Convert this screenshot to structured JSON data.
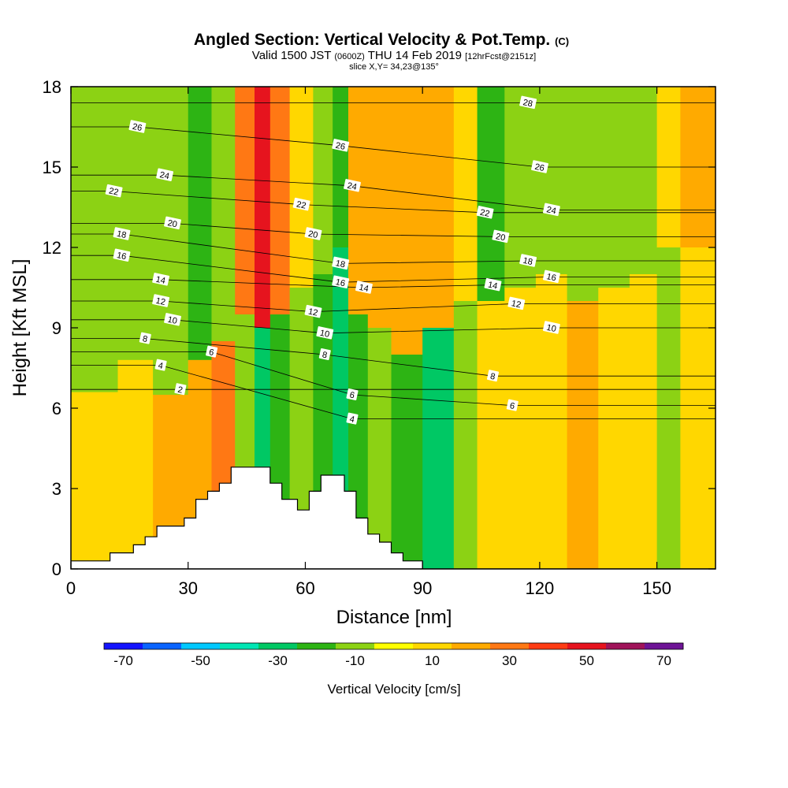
{
  "header": {
    "title_main": "Angled Section: Vertical Velocity & Pot.Temp.",
    "title_suffix": "(C)",
    "valid_prefix": "Valid 1500 JST",
    "valid_utc": "(0600Z)",
    "valid_date": "THU 14 Feb 2019",
    "forecast_info": "[12hrFcst@2151z]",
    "slice_info": "slice X,Y= 34,23@135°"
  },
  "chart_data": {
    "type": "heatmap",
    "xlabel": "Distance [nm]",
    "ylabel": "Height [Kft MSL]",
    "xlim": [
      0,
      165
    ],
    "ylim": [
      0,
      18
    ],
    "x_ticks": [
      0,
      30,
      60,
      90,
      120,
      150
    ],
    "y_ticks": [
      0,
      3,
      6,
      9,
      12,
      15,
      18
    ],
    "grid": false,
    "colorbar": {
      "title": "Vertical Velocity [cm/s]",
      "bounds": [
        -75,
        -65,
        -55,
        -45,
        -35,
        -25,
        -15,
        -5,
        5,
        15,
        25,
        35,
        45,
        55,
        65,
        75
      ],
      "colors": [
        "#1414ff",
        "#0a64ff",
        "#00c8ff",
        "#00e6b4",
        "#00c864",
        "#2db414",
        "#8cd214",
        "#ffff00",
        "#ffd700",
        "#ffaa00",
        "#ff7814",
        "#ff3c14",
        "#e6141e",
        "#a0145a",
        "#6e1496"
      ],
      "tick_values": [
        -70,
        -50,
        -30,
        -10,
        10,
        30,
        50,
        70
      ],
      "tick_labels": [
        "-70",
        "-50",
        "-30",
        "-10",
        "10",
        "30",
        "50",
        "70"
      ]
    },
    "vertical_velocity_bands": [
      {
        "x": [
          0,
          12
        ],
        "y": [
          6.6,
          18
        ],
        "value": -10
      },
      {
        "x": [
          0,
          12
        ],
        "y": [
          0,
          6.6
        ],
        "value": 10
      },
      {
        "x": [
          12,
          21
        ],
        "y": [
          7.8,
          18
        ],
        "value": -12
      },
      {
        "x": [
          12,
          21
        ],
        "y": [
          0,
          7.8
        ],
        "value": 10
      },
      {
        "x": [
          21,
          30
        ],
        "y": [
          6.5,
          18
        ],
        "value": -10
      },
      {
        "x": [
          21,
          30
        ],
        "y": [
          0,
          6.5
        ],
        "value": 18
      },
      {
        "x": [
          30,
          36
        ],
        "y": [
          7.8,
          18
        ],
        "value": -18
      },
      {
        "x": [
          30,
          36
        ],
        "y": [
          0,
          7.8
        ],
        "value": 22
      },
      {
        "x": [
          36,
          42
        ],
        "y": [
          8.5,
          18
        ],
        "value": -10
      },
      {
        "x": [
          36,
          42
        ],
        "y": [
          0,
          8.5
        ],
        "value": 25
      },
      {
        "x": [
          42,
          47
        ],
        "y": [
          9.5,
          18
        ],
        "value": 30
      },
      {
        "x": [
          42,
          47
        ],
        "y": [
          0,
          9.5
        ],
        "value": -12
      },
      {
        "x": [
          47,
          51
        ],
        "y": [
          9,
          18
        ],
        "value": 48
      },
      {
        "x": [
          47,
          51
        ],
        "y": [
          0,
          9
        ],
        "value": -28
      },
      {
        "x": [
          51,
          56
        ],
        "y": [
          9.5,
          18
        ],
        "value": 25
      },
      {
        "x": [
          51,
          56
        ],
        "y": [
          0,
          9.5
        ],
        "value": -18
      },
      {
        "x": [
          56,
          62
        ],
        "y": [
          10.5,
          18
        ],
        "value": 10
      },
      {
        "x": [
          56,
          62
        ],
        "y": [
          0,
          10.5
        ],
        "value": -12
      },
      {
        "x": [
          62,
          67
        ],
        "y": [
          11,
          18
        ],
        "value": -10
      },
      {
        "x": [
          62,
          67
        ],
        "y": [
          0,
          11
        ],
        "value": -20
      },
      {
        "x": [
          67,
          71
        ],
        "y": [
          12,
          18
        ],
        "value": -22
      },
      {
        "x": [
          67,
          71
        ],
        "y": [
          0,
          12
        ],
        "value": -35
      },
      {
        "x": [
          71,
          76
        ],
        "y": [
          9.5,
          18
        ],
        "value": 22
      },
      {
        "x": [
          71,
          76
        ],
        "y": [
          0,
          9.5
        ],
        "value": -18
      },
      {
        "x": [
          76,
          82
        ],
        "y": [
          9,
          18
        ],
        "value": 15
      },
      {
        "x": [
          76,
          82
        ],
        "y": [
          0,
          9
        ],
        "value": -12
      },
      {
        "x": [
          82,
          90
        ],
        "y": [
          8,
          18
        ],
        "value": 15
      },
      {
        "x": [
          82,
          90
        ],
        "y": [
          0,
          8
        ],
        "value": -22
      },
      {
        "x": [
          90,
          98
        ],
        "y": [
          9,
          18
        ],
        "value": 15
      },
      {
        "x": [
          90,
          98
        ],
        "y": [
          0,
          9
        ],
        "value": -30
      },
      {
        "x": [
          98,
          104
        ],
        "y": [
          10,
          18
        ],
        "value": 12
      },
      {
        "x": [
          98,
          104
        ],
        "y": [
          0,
          10
        ],
        "value": -14
      },
      {
        "x": [
          104,
          111
        ],
        "y": [
          10,
          18
        ],
        "value": -18
      },
      {
        "x": [
          104,
          111
        ],
        "y": [
          0,
          10
        ],
        "value": 10
      },
      {
        "x": [
          111,
          119
        ],
        "y": [
          10.5,
          18
        ],
        "value": -10
      },
      {
        "x": [
          111,
          119
        ],
        "y": [
          0,
          10.5
        ],
        "value": 10
      },
      {
        "x": [
          119,
          127
        ],
        "y": [
          11,
          18
        ],
        "value": -15
      },
      {
        "x": [
          119,
          127
        ],
        "y": [
          0,
          11
        ],
        "value": 12
      },
      {
        "x": [
          127,
          135
        ],
        "y": [
          10,
          18
        ],
        "value": -15
      },
      {
        "x": [
          127,
          135
        ],
        "y": [
          0,
          10
        ],
        "value": 20
      },
      {
        "x": [
          135,
          143
        ],
        "y": [
          10.5,
          18
        ],
        "value": -10
      },
      {
        "x": [
          135,
          143
        ],
        "y": [
          0,
          10.5
        ],
        "value": 10
      },
      {
        "x": [
          143,
          150
        ],
        "y": [
          11,
          18
        ],
        "value": -12
      },
      {
        "x": [
          143,
          150
        ],
        "y": [
          0,
          11
        ],
        "value": 8
      },
      {
        "x": [
          150,
          156
        ],
        "y": [
          12,
          18
        ],
        "value": 8
      },
      {
        "x": [
          150,
          156
        ],
        "y": [
          0,
          12
        ],
        "value": -8
      },
      {
        "x": [
          156,
          165
        ],
        "y": [
          12,
          18
        ],
        "value": 20
      },
      {
        "x": [
          156,
          165
        ],
        "y": [
          0,
          12
        ],
        "value": 8
      }
    ],
    "terrain": {
      "x": [
        0,
        10,
        10,
        16,
        16,
        19,
        19,
        22,
        22,
        29,
        29,
        32,
        32,
        35,
        35,
        38,
        38,
        41,
        41,
        51,
        51,
        54,
        54,
        58,
        58,
        61,
        61,
        64,
        64,
        70,
        70,
        73,
        73,
        76,
        76,
        79,
        79,
        82,
        82,
        85,
        85,
        90,
        90,
        165
      ],
      "y": [
        0.3,
        0.3,
        0.6,
        0.6,
        0.9,
        0.9,
        1.2,
        1.2,
        1.6,
        1.6,
        1.9,
        1.9,
        2.6,
        2.6,
        2.9,
        2.9,
        3.2,
        3.2,
        3.8,
        3.8,
        3.2,
        3.2,
        2.6,
        2.6,
        2.2,
        2.2,
        2.9,
        2.9,
        3.5,
        3.5,
        2.9,
        2.9,
        1.9,
        1.9,
        1.3,
        1.3,
        1.0,
        1.0,
        0.6,
        0.6,
        0.3,
        0.3,
        0,
        0
      ]
    },
    "potential_temperature_contour_labels": [
      {
        "x": 17,
        "y": 16.5,
        "text": "26"
      },
      {
        "x": 24,
        "y": 14.7,
        "text": "24"
      },
      {
        "x": 11,
        "y": 14.1,
        "text": "22"
      },
      {
        "x": 26,
        "y": 12.9,
        "text": "20"
      },
      {
        "x": 13,
        "y": 12.5,
        "text": "18"
      },
      {
        "x": 13,
        "y": 11.7,
        "text": "16"
      },
      {
        "x": 23,
        "y": 10.8,
        "text": "14"
      },
      {
        "x": 23,
        "y": 10.0,
        "text": "12"
      },
      {
        "x": 26,
        "y": 9.3,
        "text": "10"
      },
      {
        "x": 19,
        "y": 8.6,
        "text": "8"
      },
      {
        "x": 36,
        "y": 8.1,
        "text": "6"
      },
      {
        "x": 23,
        "y": 7.6,
        "text": "4"
      },
      {
        "x": 28,
        "y": 6.7,
        "text": "2"
      },
      {
        "x": 69,
        "y": 15.8,
        "text": "26"
      },
      {
        "x": 72,
        "y": 14.3,
        "text": "24"
      },
      {
        "x": 59,
        "y": 13.6,
        "text": "22"
      },
      {
        "x": 62,
        "y": 12.5,
        "text": "20"
      },
      {
        "x": 69,
        "y": 11.4,
        "text": "18"
      },
      {
        "x": 69,
        "y": 10.7,
        "text": "16"
      },
      {
        "x": 75,
        "y": 10.5,
        "text": "14"
      },
      {
        "x": 62,
        "y": 9.6,
        "text": "12"
      },
      {
        "x": 65,
        "y": 8.8,
        "text": "10"
      },
      {
        "x": 65,
        "y": 8.0,
        "text": "8"
      },
      {
        "x": 72,
        "y": 6.5,
        "text": "6"
      },
      {
        "x": 72,
        "y": 5.6,
        "text": "4"
      },
      {
        "x": 117,
        "y": 17.4,
        "text": "28"
      },
      {
        "x": 120,
        "y": 15.0,
        "text": "26"
      },
      {
        "x": 123,
        "y": 13.4,
        "text": "24"
      },
      {
        "x": 106,
        "y": 13.3,
        "text": "22"
      },
      {
        "x": 110,
        "y": 12.4,
        "text": "20"
      },
      {
        "x": 117,
        "y": 11.5,
        "text": "18"
      },
      {
        "x": 123,
        "y": 10.9,
        "text": "16"
      },
      {
        "x": 108,
        "y": 10.6,
        "text": "14"
      },
      {
        "x": 114,
        "y": 9.9,
        "text": "12"
      },
      {
        "x": 123,
        "y": 9.0,
        "text": "10"
      },
      {
        "x": 108,
        "y": 7.2,
        "text": "8"
      },
      {
        "x": 113,
        "y": 6.1,
        "text": "6"
      }
    ]
  }
}
